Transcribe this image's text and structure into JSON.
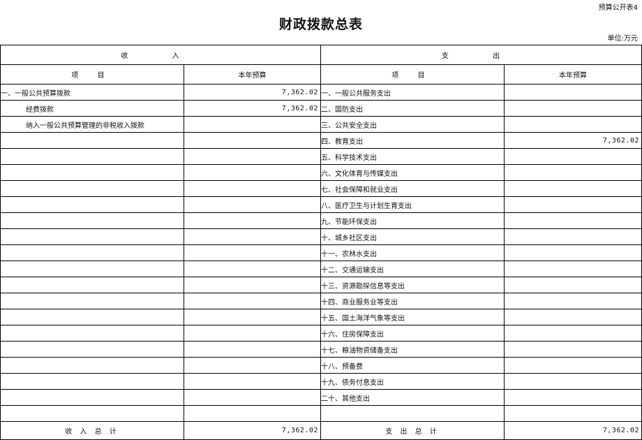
{
  "header": {
    "table_code": "预算公开表4",
    "title": "财政拨款总表",
    "unit": "单位:万元"
  },
  "columns": {
    "income_group": "收      入",
    "expense_group": "支      出",
    "item": "项      目",
    "budget": "本年预算"
  },
  "income_rows": [
    {
      "label": "一、一般公共预算拨款",
      "value": "7,362.02",
      "indent": false
    },
    {
      "label": "经费拨款",
      "value": "7,362.02",
      "indent": true
    },
    {
      "label": "纳入一般公共预算管理的非税收入拨款",
      "value": "",
      "indent": true
    }
  ],
  "expense_rows": [
    {
      "label": "一、一般公共服务支出",
      "value": ""
    },
    {
      "label": "二、国防支出",
      "value": ""
    },
    {
      "label": "三、公共安全支出",
      "value": ""
    },
    {
      "label": "四、教育支出",
      "value": "7,362.02"
    },
    {
      "label": "五、科学技术支出",
      "value": ""
    },
    {
      "label": "六、文化体育与传媒支出",
      "value": ""
    },
    {
      "label": "七、社会保障和就业支出",
      "value": ""
    },
    {
      "label": "八、医疗卫生与计划生育支出",
      "value": ""
    },
    {
      "label": "九、节能环保支出",
      "value": ""
    },
    {
      "label": "十、城乡社区支出",
      "value": ""
    },
    {
      "label": "十一、农林水支出",
      "value": ""
    },
    {
      "label": "十二、交通运输支出",
      "value": ""
    },
    {
      "label": "十三、资源勘探信息等支出",
      "value": ""
    },
    {
      "label": "十四、商业服务业等支出",
      "value": ""
    },
    {
      "label": "十五、国土海洋气象等支出",
      "value": ""
    },
    {
      "label": "十六、住房保障支出",
      "value": ""
    },
    {
      "label": "十七、粮油物资储备支出",
      "value": ""
    },
    {
      "label": "十八、预备费",
      "value": ""
    },
    {
      "label": "十九、债务付息支出",
      "value": ""
    },
    {
      "label": "二十、其他支出",
      "value": ""
    }
  ],
  "totals": {
    "income_label": "收 入 总 计",
    "income_value": "7,362.02",
    "expense_label": "支 出 总 计",
    "expense_value": "7,362.02"
  }
}
